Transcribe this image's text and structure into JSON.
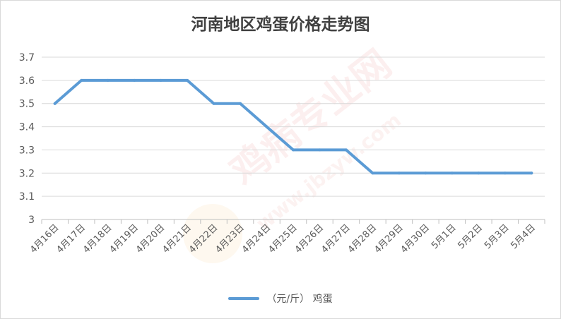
{
  "chart_data": {
    "type": "line",
    "title": "河南地区鸡蛋价格走势图",
    "categories": [
      "4月16日",
      "4月17日",
      "4月18日",
      "4月19日",
      "4月20日",
      "4月21日",
      "4月22日",
      "4月23日",
      "4月24日",
      "4月25日",
      "4月26日",
      "4月27日",
      "4月28日",
      "4月29日",
      "4月30日",
      "5月1日",
      "5月2日",
      "5月3日",
      "5月4日"
    ],
    "series": [
      {
        "name": "（元/斤）  鸡蛋",
        "values": [
          3.5,
          3.6,
          3.6,
          3.6,
          3.6,
          3.6,
          3.5,
          3.5,
          3.4,
          3.3,
          3.3,
          3.3,
          3.2,
          3.2,
          3.2,
          3.2,
          3.2,
          3.2,
          3.2
        ],
        "color": "#5b9bd5"
      }
    ],
    "ylim": [
      3,
      3.7
    ],
    "yticks": [
      "3",
      "3.1",
      "3.2",
      "3.3",
      "3.4",
      "3.5",
      "3.6",
      "3.7"
    ],
    "grid": true,
    "legend": "bottom",
    "xlabel": "",
    "ylabel": ""
  },
  "watermark": {
    "text": "鸡病专业网",
    "url": "www.jbzyw.com"
  }
}
